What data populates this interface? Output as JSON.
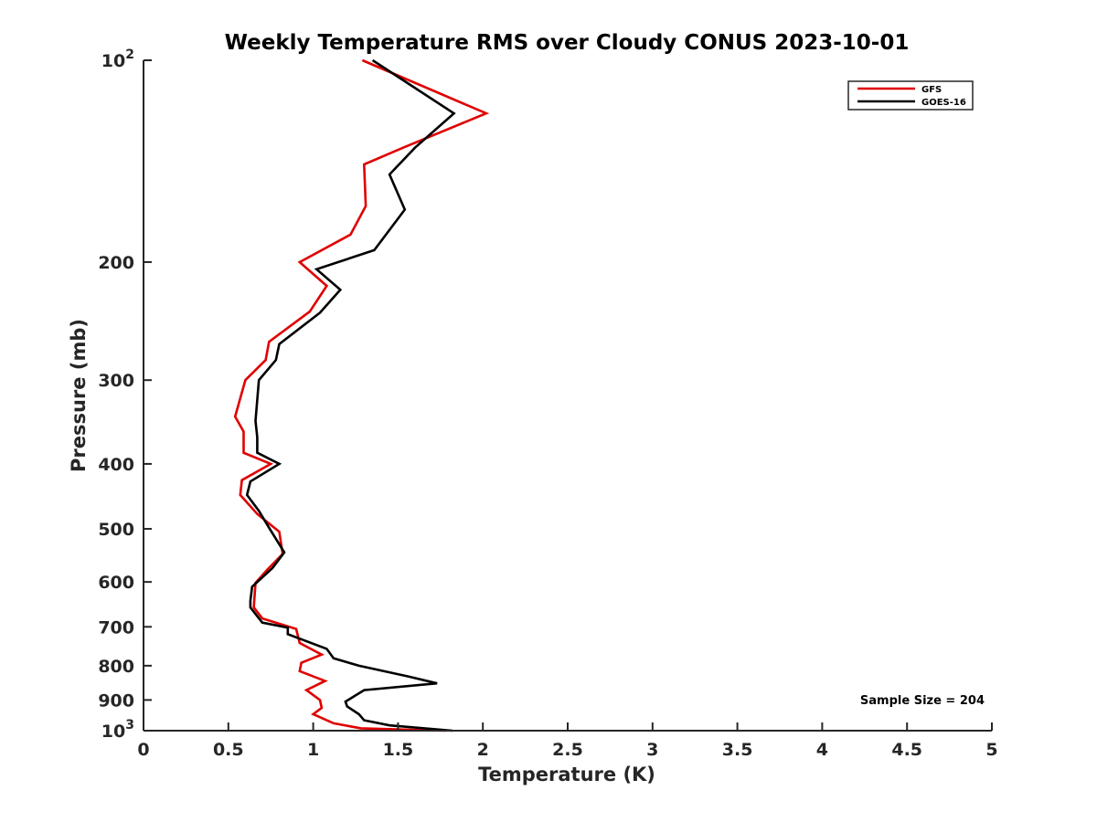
{
  "chart_data": {
    "type": "line",
    "title": "Weekly Temperature RMS over Cloudy CONUS 2023-10-01",
    "xlabel": "Temperature (K)",
    "ylabel": "Pressure (mb)",
    "xlim": [
      0,
      5
    ],
    "ylim": [
      100,
      1000
    ],
    "yscale": "log",
    "y_reversed": true,
    "grid": false,
    "legend_position": "top-right",
    "x_ticks": [
      0,
      0.5,
      1,
      1.5,
      2,
      2.5,
      3,
      3.5,
      4,
      4.5,
      5
    ],
    "x_tick_labels": [
      "0",
      "0.5",
      "1",
      "1.5",
      "2",
      "2.5",
      "3",
      "3.5",
      "4",
      "4.5",
      "5"
    ],
    "y_ticks": [
      100,
      200,
      300,
      400,
      500,
      600,
      700,
      800,
      900,
      1000
    ],
    "y_tick_labels": [
      {
        "base": "10",
        "exp": "2"
      },
      {
        "base": "200",
        "exp": ""
      },
      {
        "base": "300",
        "exp": ""
      },
      {
        "base": "400",
        "exp": ""
      },
      {
        "base": "500",
        "exp": ""
      },
      {
        "base": "600",
        "exp": ""
      },
      {
        "base": "700",
        "exp": ""
      },
      {
        "base": "800",
        "exp": ""
      },
      {
        "base": "900",
        "exp": ""
      },
      {
        "base": "10",
        "exp": "3"
      }
    ],
    "series": [
      {
        "name": "GFS",
        "color": "#e00000",
        "points": [
          [
            1.29,
            100
          ],
          [
            2.02,
            120
          ],
          [
            1.53,
            135
          ],
          [
            1.3,
            143
          ],
          [
            1.31,
            165
          ],
          [
            1.22,
            182
          ],
          [
            0.92,
            200
          ],
          [
            1.08,
            217
          ],
          [
            0.98,
            237
          ],
          [
            0.74,
            263
          ],
          [
            0.72,
            280
          ],
          [
            0.6,
            300
          ],
          [
            0.54,
            340
          ],
          [
            0.59,
            358
          ],
          [
            0.59,
            385
          ],
          [
            0.75,
            400
          ],
          [
            0.58,
            423
          ],
          [
            0.57,
            445
          ],
          [
            0.67,
            475
          ],
          [
            0.8,
            505
          ],
          [
            0.82,
            545
          ],
          [
            0.73,
            575
          ],
          [
            0.66,
            602
          ],
          [
            0.65,
            655
          ],
          [
            0.7,
            680
          ],
          [
            0.9,
            705
          ],
          [
            0.92,
            740
          ],
          [
            1.05,
            770
          ],
          [
            0.93,
            792
          ],
          [
            0.92,
            815
          ],
          [
            1.07,
            843
          ],
          [
            0.96,
            870
          ],
          [
            1.04,
            900
          ],
          [
            1.05,
            925
          ],
          [
            1.0,
            945
          ],
          [
            1.12,
            975
          ],
          [
            1.28,
            992
          ],
          [
            1.78,
            1000
          ]
        ]
      },
      {
        "name": "GOES-16",
        "color": "#000000",
        "points": [
          [
            1.35,
            100
          ],
          [
            1.83,
            120
          ],
          [
            1.6,
            135
          ],
          [
            1.45,
            148
          ],
          [
            1.54,
            167
          ],
          [
            1.36,
            192
          ],
          [
            1.02,
            205
          ],
          [
            1.16,
            220
          ],
          [
            1.04,
            238
          ],
          [
            0.8,
            265
          ],
          [
            0.78,
            280
          ],
          [
            0.68,
            300
          ],
          [
            0.66,
            345
          ],
          [
            0.67,
            365
          ],
          [
            0.67,
            385
          ],
          [
            0.8,
            400
          ],
          [
            0.63,
            425
          ],
          [
            0.61,
            445
          ],
          [
            0.68,
            470
          ],
          [
            0.74,
            498
          ],
          [
            0.83,
            542
          ],
          [
            0.76,
            572
          ],
          [
            0.64,
            610
          ],
          [
            0.63,
            640
          ],
          [
            0.63,
            655
          ],
          [
            0.7,
            690
          ],
          [
            0.85,
            702
          ],
          [
            0.85,
            718
          ],
          [
            1.08,
            755
          ],
          [
            1.12,
            780
          ],
          [
            1.27,
            800
          ],
          [
            1.56,
            830
          ],
          [
            1.73,
            850
          ],
          [
            1.3,
            870
          ],
          [
            1.19,
            905
          ],
          [
            1.2,
            920
          ],
          [
            1.27,
            945
          ],
          [
            1.3,
            965
          ],
          [
            1.45,
            982
          ],
          [
            1.82,
            1000
          ]
        ]
      }
    ],
    "annotation": "Sample Size = 204"
  }
}
